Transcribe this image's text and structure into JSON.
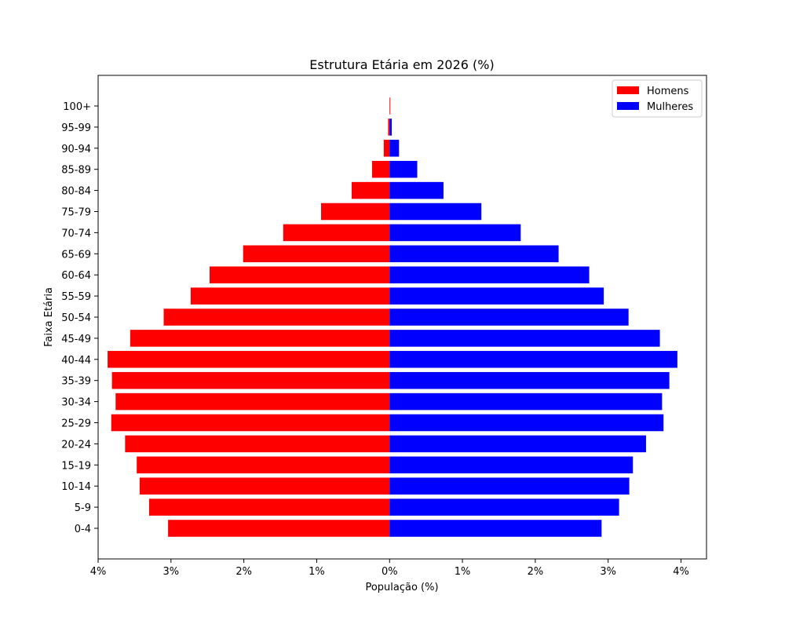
{
  "chart_data": {
    "type": "bar",
    "orientation": "horizontal",
    "title": "Estrutura Etária em 2026 (%)",
    "xlabel": "População (%)",
    "ylabel": "Faixa Etária",
    "categories": [
      "0-4",
      "5-9",
      "10-14",
      "15-19",
      "20-24",
      "25-29",
      "30-34",
      "35-39",
      "40-44",
      "45-49",
      "50-54",
      "55-59",
      "60-64",
      "65-69",
      "70-74",
      "75-79",
      "80-84",
      "85-89",
      "90-94",
      "95-99",
      "100+"
    ],
    "series": [
      {
        "name": "Homens",
        "color": "#ff0000",
        "values": [
          -3.04,
          -3.3,
          -3.43,
          -3.47,
          -3.63,
          -3.82,
          -3.76,
          -3.81,
          -3.87,
          -3.56,
          -3.1,
          -2.73,
          -2.47,
          -2.01,
          -1.46,
          -0.94,
          -0.52,
          -0.24,
          -0.08,
          -0.02,
          0.0
        ]
      },
      {
        "name": "Mulheres",
        "color": "#0000ff",
        "values": [
          2.91,
          3.15,
          3.29,
          3.34,
          3.52,
          3.76,
          3.74,
          3.84,
          3.95,
          3.71,
          3.28,
          2.94,
          2.74,
          2.32,
          1.8,
          1.26,
          0.74,
          0.38,
          0.13,
          0.03,
          0.0
        ]
      }
    ],
    "xlim": [
      -4.0,
      4.35
    ],
    "xticks": [
      -4,
      -3,
      -2,
      -1,
      0,
      1,
      2,
      3,
      4
    ],
    "xtick_labels": [
      "4%",
      "3%",
      "2%",
      "1%",
      "0%",
      "1%",
      "2%",
      "3%",
      "4%"
    ],
    "legend_position": "upper-right",
    "grid": false
  }
}
